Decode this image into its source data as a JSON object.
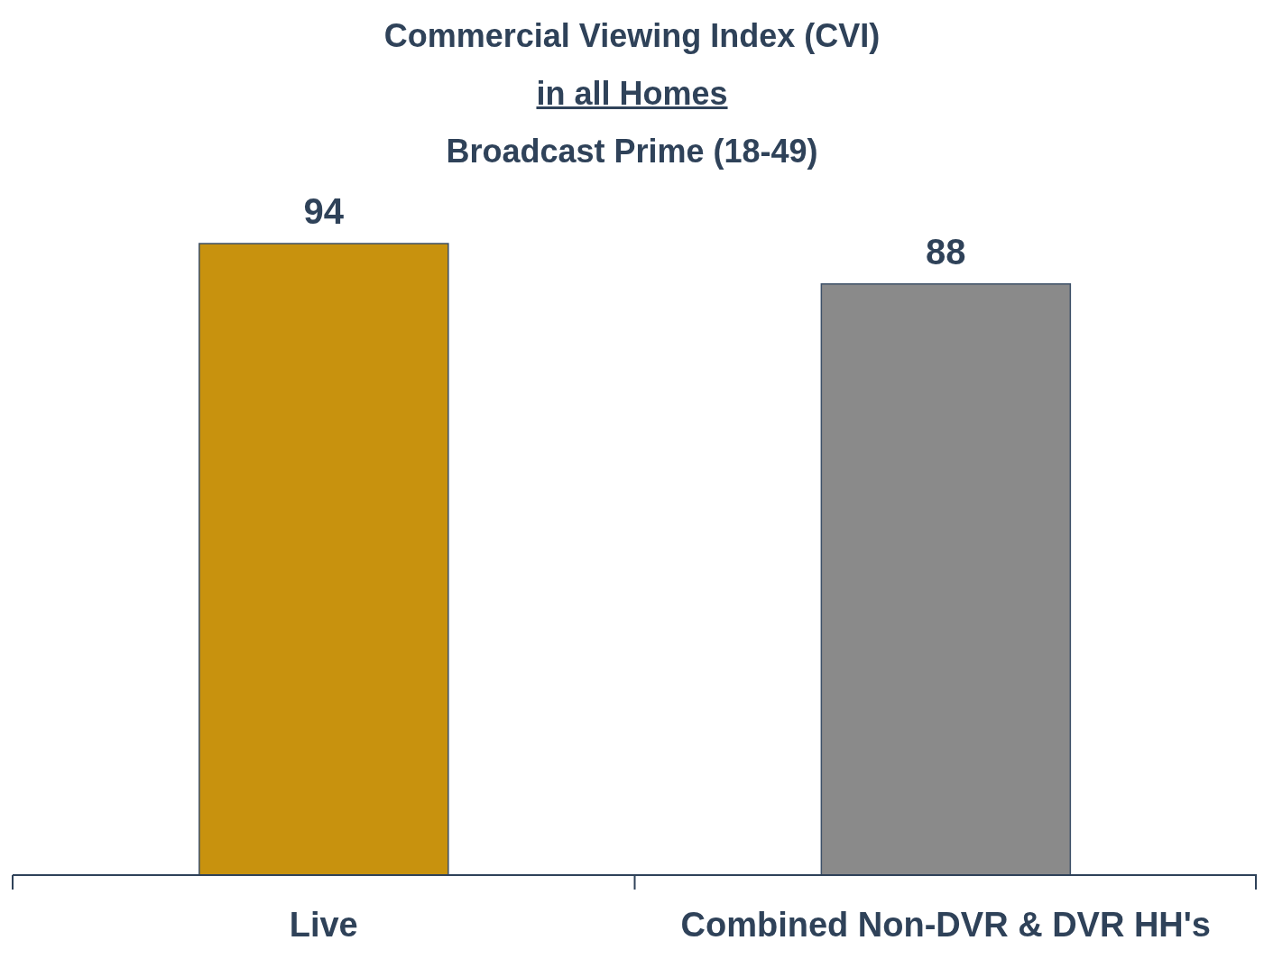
{
  "chart_data": {
    "type": "bar",
    "title": "Commercial Viewing Index (CVI)\nin all Homes\nBroadcast Prime (18-49)",
    "categories": [
      "Live",
      "Combined Non-DVR & DVR HH's"
    ],
    "values": [
      94,
      88
    ],
    "colors": [
      "#c8920e",
      "#8a8a8a"
    ],
    "data_labels": true
  }
}
